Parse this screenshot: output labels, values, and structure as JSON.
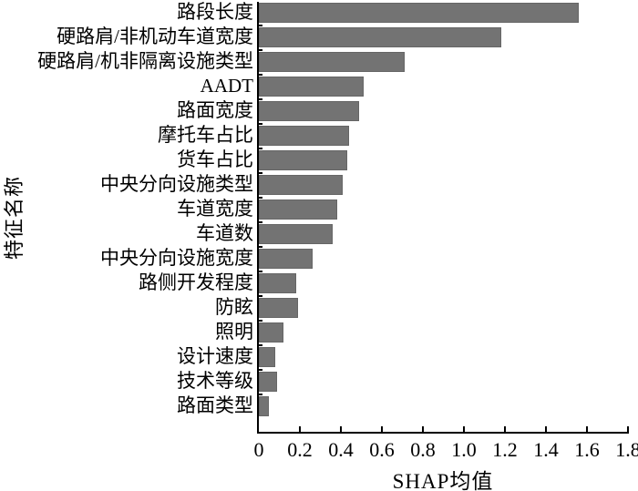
{
  "chart_data": {
    "type": "bar",
    "orientation": "horizontal",
    "title": "",
    "xlabel": "SHAP均值",
    "ylabel": "特征名称",
    "xlim": [
      0,
      1.8
    ],
    "x_tick_labels": [
      "0",
      "0.2",
      "0.4",
      "0.6",
      "0.8",
      "1.0",
      "1.2",
      "1.4",
      "1.6",
      "1.8"
    ],
    "grid": false,
    "legend": false,
    "bar_color": "#737373",
    "bar_edge_color": "#666666",
    "axis_color": "#000000",
    "categories": [
      "路段长度",
      "硬路肩/非机动车道宽度",
      "硬路肩/机非隔离设施类型",
      "AADT",
      "路面宽度",
      "摩托车占比",
      "货车占比",
      "中央分向设施类型",
      "车道宽度",
      "车道数",
      "中央分向设施宽度",
      "路侧开发程度",
      "防眩",
      "照明",
      "设计速度",
      "技术等级",
      "路面类型"
    ],
    "values": [
      1.56,
      1.18,
      0.71,
      0.51,
      0.49,
      0.44,
      0.43,
      0.41,
      0.38,
      0.36,
      0.26,
      0.18,
      0.19,
      0.12,
      0.08,
      0.09,
      0.05
    ]
  }
}
